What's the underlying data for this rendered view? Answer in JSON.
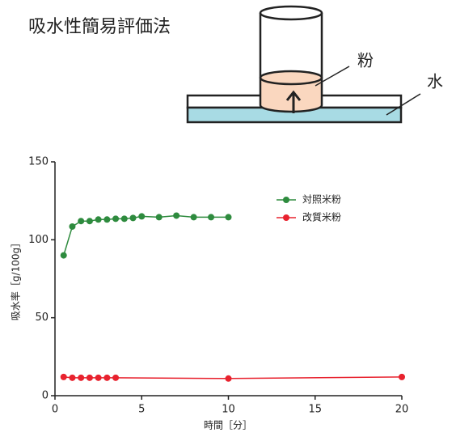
{
  "title": "吸水性簡易評価法",
  "diagram": {
    "powder_label": "粉",
    "water_label": "水"
  },
  "chart_data": {
    "type": "line",
    "x_label": "時間［分］",
    "y_label": "吸水率［g/100g］",
    "xlim": [
      0,
      20
    ],
    "xticks": [
      0,
      5,
      10,
      15,
      20
    ],
    "ylim": [
      0,
      150
    ],
    "yticks": [
      0,
      50,
      100,
      150
    ],
    "legend": "top-right",
    "series": [
      {
        "name": "対照米粉",
        "color": "#2e8b3e",
        "x": [
          0.5,
          1,
          1.5,
          2,
          2.5,
          3,
          3.5,
          4,
          4.5,
          5,
          6,
          7,
          8,
          9,
          10
        ],
        "values": [
          90,
          108.5,
          112,
          112,
          113,
          113,
          113.5,
          113.5,
          114,
          115,
          114.5,
          115.5,
          114.5,
          114.5,
          114.5
        ]
      },
      {
        "name": "改質米粉",
        "color": "#e8222e",
        "x": [
          0.5,
          1,
          1.5,
          2,
          2.5,
          3,
          3.5,
          10,
          20
        ],
        "values": [
          12,
          11.5,
          11.5,
          11.5,
          11.5,
          11.5,
          11.5,
          11,
          12
        ]
      }
    ]
  }
}
